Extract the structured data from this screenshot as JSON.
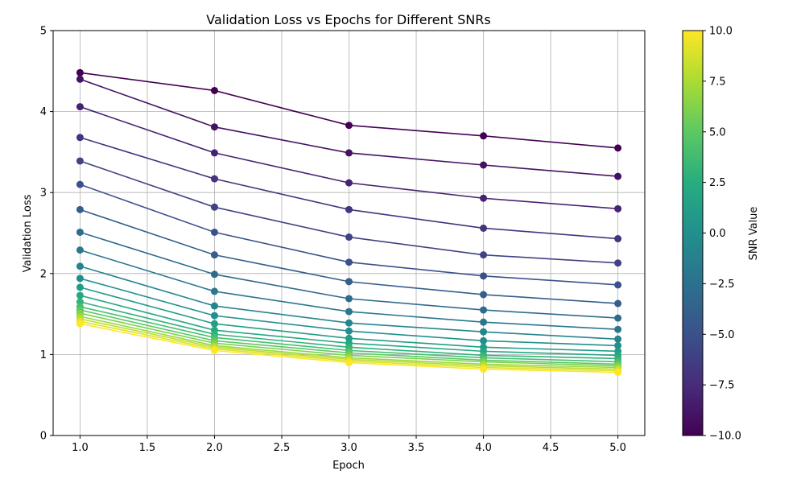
{
  "chart_data": {
    "type": "line",
    "title": "Validation Loss vs Epochs for Different SNRs",
    "xlabel": "Epoch",
    "ylabel": "Validation Loss",
    "xlim": [
      0.8,
      5.2
    ],
    "ylim": [
      0,
      5
    ],
    "xticks": [
      1.0,
      1.5,
      2.0,
      2.5,
      3.0,
      3.5,
      4.0,
      4.5,
      5.0
    ],
    "xtick_labels": [
      "1.0",
      "1.5",
      "2.0",
      "2.5",
      "3.0",
      "3.5",
      "4.0",
      "4.5",
      "5.0"
    ],
    "yticks": [
      0,
      1,
      2,
      3,
      4,
      5
    ],
    "ytick_labels": [
      "0",
      "1",
      "2",
      "3",
      "4",
      "5"
    ],
    "grid": true,
    "colormap": "viridis",
    "colorbar": {
      "label": "SNR Value",
      "min": -10.0,
      "max": 10.0,
      "ticks": [
        -10.0,
        -7.5,
        -5.0,
        -2.5,
        0.0,
        2.5,
        5.0,
        7.5,
        10.0
      ],
      "tick_labels": [
        "−10.0",
        "−7.5",
        "−5.0",
        "−2.5",
        "0.0",
        "2.5",
        "5.0",
        "7.5",
        "10.0"
      ]
    },
    "x": [
      1,
      2,
      3,
      4,
      5
    ],
    "series": [
      {
        "snr": -10,
        "values": [
          4.48,
          4.26,
          3.83,
          3.7,
          3.55
        ]
      },
      {
        "snr": -9,
        "values": [
          4.4,
          3.81,
          3.49,
          3.34,
          3.2
        ]
      },
      {
        "snr": -8,
        "values": [
          4.06,
          3.49,
          3.12,
          2.93,
          2.8
        ]
      },
      {
        "snr": -7,
        "values": [
          3.68,
          3.17,
          2.79,
          2.56,
          2.43
        ]
      },
      {
        "snr": -6,
        "values": [
          3.39,
          2.82,
          2.45,
          2.23,
          2.13
        ]
      },
      {
        "snr": -5,
        "values": [
          3.1,
          2.51,
          2.14,
          1.97,
          1.86
        ]
      },
      {
        "snr": -4,
        "values": [
          2.79,
          2.23,
          1.9,
          1.74,
          1.63
        ]
      },
      {
        "snr": -3,
        "values": [
          2.51,
          1.99,
          1.69,
          1.55,
          1.45
        ]
      },
      {
        "snr": -2,
        "values": [
          2.29,
          1.78,
          1.53,
          1.4,
          1.31
        ]
      },
      {
        "snr": -1,
        "values": [
          2.09,
          1.6,
          1.39,
          1.28,
          1.19
        ]
      },
      {
        "snr": 0,
        "values": [
          1.94,
          1.48,
          1.29,
          1.17,
          1.11
        ]
      },
      {
        "snr": 1,
        "values": [
          1.83,
          1.38,
          1.2,
          1.09,
          1.04
        ]
      },
      {
        "snr": 2,
        "values": [
          1.73,
          1.3,
          1.14,
          1.04,
          0.99
        ]
      },
      {
        "snr": 3,
        "values": [
          1.65,
          1.25,
          1.09,
          0.99,
          0.95
        ]
      },
      {
        "snr": 4,
        "values": [
          1.59,
          1.21,
          1.05,
          0.96,
          0.91
        ]
      },
      {
        "snr": 5,
        "values": [
          1.55,
          1.17,
          1.02,
          0.93,
          0.88
        ]
      },
      {
        "snr": 6,
        "values": [
          1.51,
          1.14,
          0.99,
          0.91,
          0.86
        ]
      },
      {
        "snr": 7,
        "values": [
          1.47,
          1.11,
          0.96,
          0.88,
          0.84
        ]
      },
      {
        "snr": 8,
        "values": [
          1.44,
          1.09,
          0.94,
          0.86,
          0.82
        ]
      },
      {
        "snr": 9,
        "values": [
          1.41,
          1.07,
          0.92,
          0.84,
          0.8
        ]
      },
      {
        "snr": 10,
        "values": [
          1.38,
          1.05,
          0.9,
          0.82,
          0.78
        ]
      }
    ]
  }
}
